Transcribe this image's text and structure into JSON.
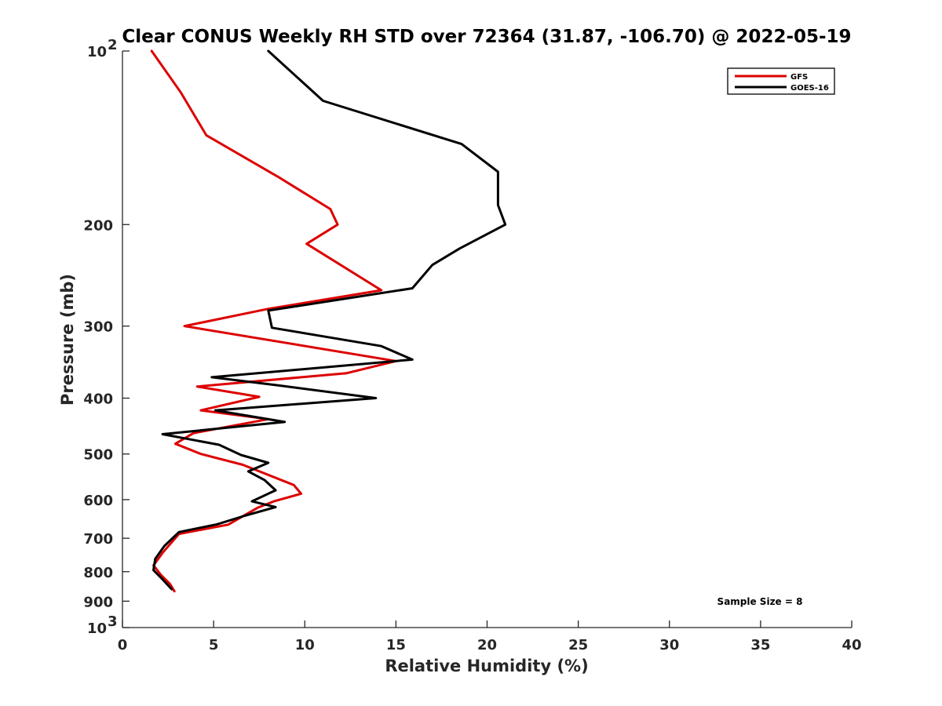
{
  "chart_data": {
    "type": "line",
    "title": "Clear CONUS Weekly RH STD over 72364 (31.87, -106.70) @ 2022-05-19",
    "xlabel": "Relative Humidity (%)",
    "ylabel": "Pressure (mb)",
    "xlim": [
      0,
      40
    ],
    "ylim": [
      100,
      1000
    ],
    "y_scale": "log",
    "y_reversed": true,
    "x_ticks": [
      "0",
      "5",
      "10",
      "15",
      "20",
      "25",
      "30",
      "35",
      "40"
    ],
    "y_ticks": [
      {
        "value": 100,
        "base": "10",
        "exp": "2",
        "label": ""
      },
      {
        "value": 200,
        "base": "",
        "exp": "",
        "label": "200"
      },
      {
        "value": 300,
        "base": "",
        "exp": "",
        "label": "300"
      },
      {
        "value": 400,
        "base": "",
        "exp": "",
        "label": "400"
      },
      {
        "value": 500,
        "base": "",
        "exp": "",
        "label": "500"
      },
      {
        "value": 600,
        "base": "",
        "exp": "",
        "label": "600"
      },
      {
        "value": 700,
        "base": "",
        "exp": "",
        "label": "700"
      },
      {
        "value": 800,
        "base": "",
        "exp": "",
        "label": "800"
      },
      {
        "value": 900,
        "base": "",
        "exp": "",
        "label": "900"
      },
      {
        "value": 1000,
        "base": "10",
        "exp": "3",
        "label": ""
      }
    ],
    "legend_position": "top-right",
    "annotation": "Sample Size = 8",
    "series": [
      {
        "name": "GFS",
        "color": "#dd0000",
        "points": [
          [
            1.6,
            100
          ],
          [
            3.2,
            118
          ],
          [
            4.6,
            140
          ],
          [
            8.5,
            165
          ],
          [
            11.4,
            188
          ],
          [
            11.8,
            200
          ],
          [
            10.1,
            216
          ],
          [
            14.2,
            260
          ],
          [
            8,
            280
          ],
          [
            3.4,
            300
          ],
          [
            15,
            345
          ],
          [
            12.3,
            362
          ],
          [
            4.1,
            382
          ],
          [
            7.5,
            398
          ],
          [
            4.3,
            420
          ],
          [
            8,
            435
          ],
          [
            3.9,
            460
          ],
          [
            2.9,
            480
          ],
          [
            4.3,
            500
          ],
          [
            6.6,
            522
          ],
          [
            9.4,
            566
          ],
          [
            9.8,
            586
          ],
          [
            8.3,
            604
          ],
          [
            7.4,
            620
          ],
          [
            5.8,
            663
          ],
          [
            3.1,
            688
          ],
          [
            2.2,
            742
          ],
          [
            1.7,
            780
          ],
          [
            2.1,
            810
          ],
          [
            2.6,
            840
          ],
          [
            2.85,
            865
          ]
        ]
      },
      {
        "name": "GOES-16",
        "color": "#000000",
        "points": [
          [
            8,
            100
          ],
          [
            11,
            122
          ],
          [
            18.6,
            145
          ],
          [
            20.6,
            162
          ],
          [
            20.6,
            185
          ],
          [
            21,
            200
          ],
          [
            18.5,
            220
          ],
          [
            17,
            235
          ],
          [
            15.9,
            258
          ],
          [
            8,
            282
          ],
          [
            8.2,
            302
          ],
          [
            14.2,
            325
          ],
          [
            15.9,
            343
          ],
          [
            4.9,
            368
          ],
          [
            8.5,
            380
          ],
          [
            13.9,
            400
          ],
          [
            5.1,
            420
          ],
          [
            8.9,
            440
          ],
          [
            2.2,
            462
          ],
          [
            5.3,
            482
          ],
          [
            6.5,
            502
          ],
          [
            8,
            518
          ],
          [
            6.9,
            536
          ],
          [
            7.8,
            555
          ],
          [
            8.4,
            578
          ],
          [
            7.1,
            604
          ],
          [
            8.4,
            618
          ],
          [
            6.7,
            640
          ],
          [
            5.2,
            662
          ],
          [
            3.1,
            683
          ],
          [
            2.3,
            722
          ],
          [
            1.8,
            760
          ],
          [
            1.7,
            795
          ],
          [
            2.2,
            825
          ],
          [
            2.7,
            858
          ]
        ]
      }
    ]
  }
}
